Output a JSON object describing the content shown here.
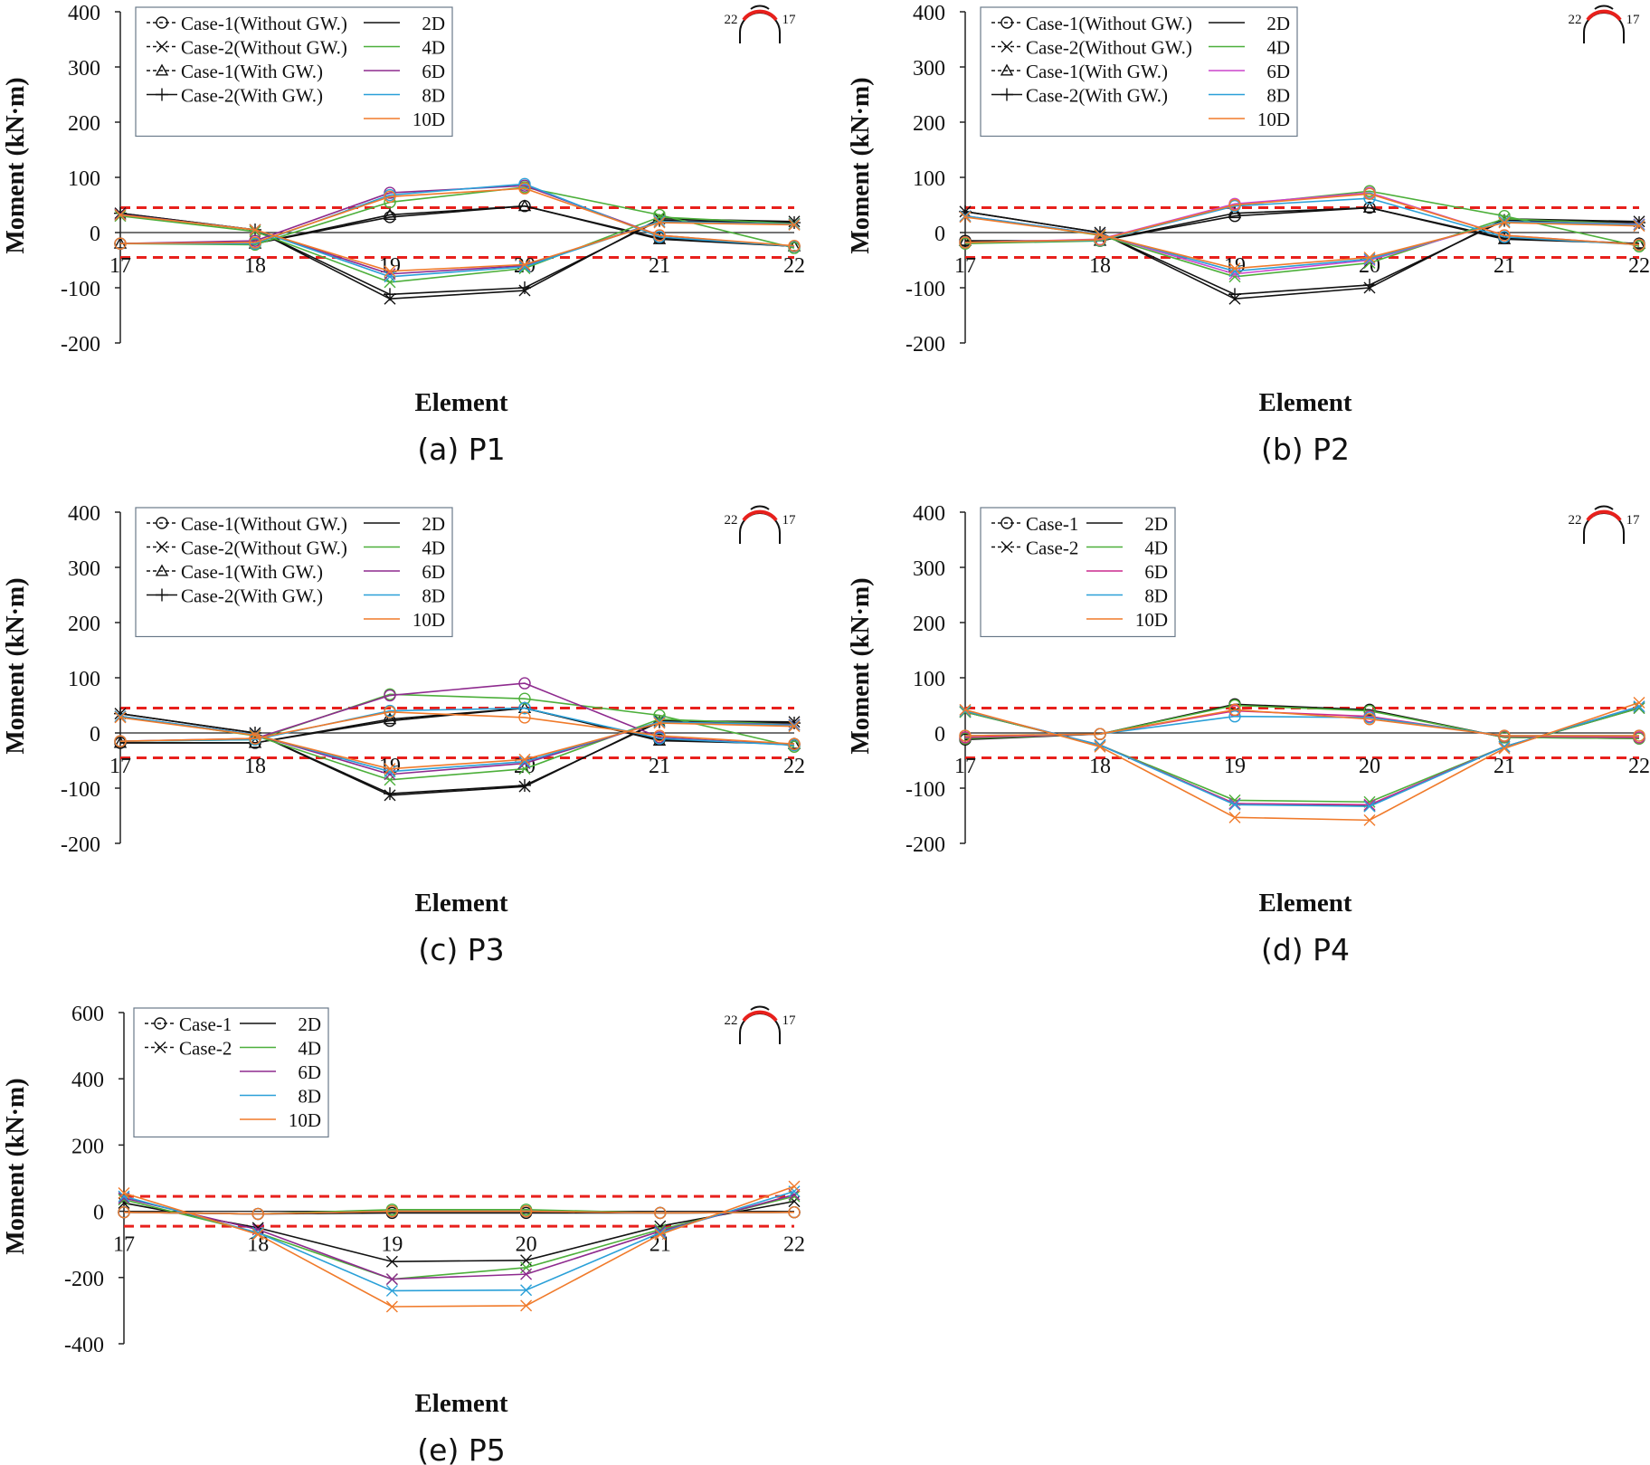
{
  "chart_data": [
    {
      "type": "line",
      "panel": "(a) P1",
      "caption": "(a) P1",
      "xlabel": "Element",
      "ylabel": "Moment (kN·m)",
      "categories": [
        "17",
        "18",
        "19",
        "20",
        "21",
        "22"
      ],
      "ylim": [
        -200,
        400
      ],
      "yticks": [
        "400",
        "300",
        "200",
        "100",
        "0",
        "-100",
        "-200"
      ],
      "reference_lines": [
        45,
        -45
      ],
      "legend_markers": [
        "Case-1(Without GW.)",
        "Case-2(Without GW.)",
        "Case-1(With GW.)",
        "Case-2(With GW.)"
      ],
      "legend_colors": [
        "2D",
        "4D",
        "6D",
        "8D",
        "10D"
      ],
      "tunnel_labels": [
        "22",
        "17"
      ],
      "series": [
        {
          "name": "Case-1(Without GW.) 2D",
          "color": "#111111",
          "marker": "circle",
          "values": [
            -20,
            -20,
            28,
            48,
            -10,
            -25
          ]
        },
        {
          "name": "Case-2(Without GW.) 2D",
          "color": "#111111",
          "marker": "x",
          "values": [
            35,
            5,
            -120,
            -105,
            25,
            20
          ]
        },
        {
          "name": "Case-1(With GW.) 2D",
          "color": "#111111",
          "marker": "triangle",
          "values": [
            -20,
            -20,
            32,
            48,
            -12,
            -25
          ]
        },
        {
          "name": "Case-2(With GW.) 2D",
          "color": "#111111",
          "marker": "plus",
          "values": [
            35,
            5,
            -112,
            -100,
            22,
            18
          ]
        },
        {
          "name": "Case-1 4D",
          "color": "#4caf3a",
          "marker": "circle",
          "values": [
            -20,
            -22,
            55,
            82,
            32,
            -28
          ]
        },
        {
          "name": "Case-2 4D",
          "color": "#4caf3a",
          "marker": "x",
          "values": [
            30,
            2,
            -90,
            -65,
            28,
            16
          ]
        },
        {
          "name": "Case-1 6D",
          "color": "#8e2a8e",
          "marker": "circle",
          "values": [
            -20,
            -15,
            72,
            85,
            -5,
            -25
          ]
        },
        {
          "name": "Case-2 6D",
          "color": "#8e2a8e",
          "marker": "x",
          "values": [
            33,
            5,
            -75,
            -60,
            20,
            15
          ]
        },
        {
          "name": "Case-1 8D",
          "color": "#2aa0d8",
          "marker": "circle",
          "values": [
            -20,
            -20,
            68,
            88,
            -8,
            -25
          ]
        },
        {
          "name": "Case-2 8D",
          "color": "#2aa0d8",
          "marker": "x",
          "values": [
            32,
            5,
            -80,
            -62,
            20,
            15
          ]
        },
        {
          "name": "Case-1 10D",
          "color": "#f07a2a",
          "marker": "circle",
          "values": [
            -20,
            -18,
            65,
            80,
            -5,
            -24
          ]
        },
        {
          "name": "Case-2 10D",
          "color": "#f07a2a",
          "marker": "x",
          "values": [
            32,
            5,
            -70,
            -58,
            18,
            14
          ]
        }
      ]
    },
    {
      "type": "line",
      "panel": "(b) P2",
      "caption": "(b) P2",
      "xlabel": "Element",
      "ylabel": "Moment (kN·m)",
      "categories": [
        "17",
        "18",
        "19",
        "20",
        "21",
        "22"
      ],
      "ylim": [
        -200,
        400
      ],
      "yticks": [
        "400",
        "300",
        "200",
        "100",
        "0",
        "-100",
        "-200"
      ],
      "reference_lines": [
        45,
        -45
      ],
      "legend_markers": [
        "Case-1(Without GW.)",
        "Case-2(Without GW.)",
        "Case-1(With GW.)",
        "Case-2(With GW.)"
      ],
      "legend_colors": [
        "2D",
        "4D",
        "6D",
        "8D",
        "10D"
      ],
      "tunnel_labels": [
        "22",
        "17"
      ],
      "series": [
        {
          "name": "Case-1(Without GW.) 2D",
          "color": "#111111",
          "marker": "circle",
          "values": [
            -15,
            -15,
            30,
            45,
            -10,
            -20
          ]
        },
        {
          "name": "Case-2(Without GW.) 2D",
          "color": "#111111",
          "marker": "x",
          "values": [
            38,
            0,
            -120,
            -100,
            25,
            20
          ]
        },
        {
          "name": "Case-1(With GW.) 2D",
          "color": "#111111",
          "marker": "triangle",
          "values": [
            -15,
            -15,
            35,
            45,
            -12,
            -20
          ]
        },
        {
          "name": "Case-2(With GW.) 2D",
          "color": "#111111",
          "marker": "plus",
          "values": [
            38,
            0,
            -112,
            -95,
            22,
            18
          ]
        },
        {
          "name": "Case-1 4D",
          "color": "#4caf3a",
          "marker": "circle",
          "values": [
            -20,
            -15,
            50,
            75,
            30,
            -25
          ]
        },
        {
          "name": "Case-2 4D",
          "color": "#4caf3a",
          "marker": "x",
          "values": [
            30,
            -5,
            -80,
            -55,
            25,
            15
          ]
        },
        {
          "name": "Case-1 6D",
          "color": "#cc44cc",
          "marker": "circle",
          "values": [
            -18,
            -12,
            52,
            72,
            -5,
            -22
          ]
        },
        {
          "name": "Case-2 6D",
          "color": "#cc44cc",
          "marker": "x",
          "values": [
            30,
            -3,
            -75,
            -50,
            20,
            15
          ]
        },
        {
          "name": "Case-1 8D",
          "color": "#2aa0d8",
          "marker": "circle",
          "values": [
            -18,
            -14,
            48,
            62,
            -8,
            -22
          ]
        },
        {
          "name": "Case-2 8D",
          "color": "#2aa0d8",
          "marker": "x",
          "values": [
            30,
            -3,
            -70,
            -48,
            20,
            14
          ]
        },
        {
          "name": "Case-1 10D",
          "color": "#f07a2a",
          "marker": "circle",
          "values": [
            -18,
            -13,
            50,
            70,
            -5,
            -22
          ]
        },
        {
          "name": "Case-2 10D",
          "color": "#f07a2a",
          "marker": "x",
          "values": [
            28,
            -4,
            -65,
            -45,
            18,
            12
          ]
        }
      ]
    },
    {
      "type": "line",
      "panel": "(c) P3",
      "caption": "(c) P3",
      "xlabel": "Element",
      "ylabel": "Moment (kN·m)",
      "categories": [
        "17",
        "18",
        "19",
        "20",
        "21",
        "22"
      ],
      "ylim": [
        -200,
        400
      ],
      "yticks": [
        "400",
        "300",
        "200",
        "100",
        "0",
        "-100",
        "-200"
      ],
      "reference_lines": [
        45,
        -45
      ],
      "legend_markers": [
        "Case-1(Without GW.)",
        "Case-2(Without GW.)",
        "Case-1(With GW.)",
        "Case-2(With GW.)"
      ],
      "legend_colors": [
        "2D",
        "4D",
        "6D",
        "8D",
        "10D"
      ],
      "tunnel_labels": [
        "22",
        "17"
      ],
      "series": [
        {
          "name": "Case-1(Without GW.) 2D",
          "color": "#111111",
          "marker": "circle",
          "values": [
            -18,
            -18,
            22,
            45,
            -12,
            -20
          ]
        },
        {
          "name": "Case-2(Without GW.) 2D",
          "color": "#111111",
          "marker": "x",
          "values": [
            35,
            0,
            -113,
            -97,
            22,
            20
          ]
        },
        {
          "name": "Case-1(With GW.) 2D",
          "color": "#111111",
          "marker": "triangle",
          "values": [
            -18,
            -18,
            25,
            45,
            -14,
            -20
          ]
        },
        {
          "name": "Case-2(With GW.) 2D",
          "color": "#111111",
          "marker": "plus",
          "values": [
            35,
            0,
            -110,
            -95,
            20,
            18
          ]
        },
        {
          "name": "Case-1 4D",
          "color": "#4caf3a",
          "marker": "circle",
          "values": [
            -15,
            -12,
            70,
            62,
            32,
            -25
          ]
        },
        {
          "name": "Case-2 4D",
          "color": "#4caf3a",
          "marker": "x",
          "values": [
            30,
            -5,
            -85,
            -65,
            25,
            15
          ]
        },
        {
          "name": "Case-1 6D",
          "color": "#8e2a8e",
          "marker": "circle",
          "values": [
            -15,
            -10,
            68,
            90,
            -8,
            -22
          ]
        },
        {
          "name": "Case-2 6D",
          "color": "#8e2a8e",
          "marker": "x",
          "values": [
            30,
            -3,
            -75,
            -55,
            20,
            15
          ]
        },
        {
          "name": "Case-1 8D",
          "color": "#2aa0d8",
          "marker": "circle",
          "values": [
            -15,
            -12,
            40,
            45,
            -10,
            -22
          ]
        },
        {
          "name": "Case-2 8D",
          "color": "#2aa0d8",
          "marker": "x",
          "values": [
            30,
            -3,
            -70,
            -52,
            20,
            14
          ]
        },
        {
          "name": "Case-1 10D",
          "color": "#f07a2a",
          "marker": "circle",
          "values": [
            -15,
            -10,
            38,
            28,
            -5,
            -20
          ]
        },
        {
          "name": "Case-2 10D",
          "color": "#f07a2a",
          "marker": "x",
          "values": [
            28,
            -4,
            -65,
            -48,
            18,
            12
          ]
        }
      ]
    },
    {
      "type": "line",
      "panel": "(d) P4",
      "caption": "(d) P4",
      "xlabel": "Element",
      "ylabel": "Moment (kN·m)",
      "categories": [
        "17",
        "18",
        "19",
        "20",
        "21",
        "22"
      ],
      "ylim": [
        -200,
        400
      ],
      "yticks": [
        "400",
        "300",
        "200",
        "100",
        "0",
        "-100",
        "-200"
      ],
      "reference_lines": [
        45,
        -45
      ],
      "legend_markers": [
        "Case-1",
        "Case-2"
      ],
      "legend_colors": [
        "2D",
        "4D",
        "6D",
        "8D",
        "10D"
      ],
      "tunnel_labels": [
        "22",
        "17"
      ],
      "series": [
        {
          "name": "Case-1 2D",
          "color": "#111111",
          "marker": "circle",
          "values": [
            -12,
            -2,
            52,
            42,
            -8,
            -10
          ]
        },
        {
          "name": "Case-2 2D",
          "color": "#111111",
          "marker": "x",
          "values": [
            38,
            -22,
            -128,
            -132,
            -25,
            45
          ]
        },
        {
          "name": "Case-1 4D",
          "color": "#4caf3a",
          "marker": "circle",
          "values": [
            -10,
            -2,
            50,
            40,
            -8,
            -10
          ]
        },
        {
          "name": "Case-2 4D",
          "color": "#4caf3a",
          "marker": "x",
          "values": [
            38,
            -22,
            -122,
            -125,
            -25,
            45
          ]
        },
        {
          "name": "Case-1 6D",
          "color": "#cc2a8e",
          "marker": "circle",
          "values": [
            -8,
            -2,
            40,
            30,
            -6,
            -8
          ]
        },
        {
          "name": "Case-2 6D",
          "color": "#cc2a8e",
          "marker": "x",
          "values": [
            40,
            -22,
            -128,
            -130,
            -25,
            48
          ]
        },
        {
          "name": "Case-1 8D",
          "color": "#2aa0d8",
          "marker": "circle",
          "values": [
            -5,
            -2,
            30,
            28,
            -5,
            -5
          ]
        },
        {
          "name": "Case-2 8D",
          "color": "#2aa0d8",
          "marker": "x",
          "values": [
            40,
            -22,
            -130,
            -133,
            -25,
            48
          ]
        },
        {
          "name": "Case-1 10D",
          "color": "#f07a2a",
          "marker": "circle",
          "values": [
            -5,
            -2,
            42,
            25,
            -5,
            -5
          ]
        },
        {
          "name": "Case-2 10D",
          "color": "#f07a2a",
          "marker": "x",
          "values": [
            42,
            -25,
            -153,
            -158,
            -28,
            55
          ]
        }
      ]
    },
    {
      "type": "line",
      "panel": "(e) P5",
      "caption": "(e) P5",
      "xlabel": "Element",
      "ylabel": "Moment (kN·m)",
      "categories": [
        "17",
        "18",
        "19",
        "20",
        "21",
        "22"
      ],
      "ylim": [
        -400,
        600
      ],
      "yticks": [
        "600",
        "400",
        "200",
        "0",
        "-200",
        "-400"
      ],
      "reference_lines": [
        45,
        -45
      ],
      "legend_markers": [
        "Case-1",
        "Case-2"
      ],
      "legend_colors": [
        "2D",
        "4D",
        "6D",
        "8D",
        "10D"
      ],
      "tunnel_labels": [
        "22",
        "17"
      ],
      "series": [
        {
          "name": "Case-1 2D",
          "color": "#111111",
          "marker": "circle",
          "values": [
            -3,
            -8,
            -5,
            -5,
            -5,
            -3
          ]
        },
        {
          "name": "Case-2 2D",
          "color": "#111111",
          "marker": "x",
          "values": [
            25,
            -50,
            -152,
            -148,
            -45,
            30
          ]
        },
        {
          "name": "Case-1 4D",
          "color": "#4caf3a",
          "marker": "circle",
          "values": [
            -3,
            -8,
            5,
            5,
            -5,
            -3
          ]
        },
        {
          "name": "Case-2 4D",
          "color": "#4caf3a",
          "marker": "x",
          "values": [
            35,
            -65,
            -205,
            -170,
            -55,
            45
          ]
        },
        {
          "name": "Case-1 6D",
          "color": "#8e2a8e",
          "marker": "circle",
          "values": [
            -3,
            -8,
            0,
            0,
            -5,
            -3
          ]
        },
        {
          "name": "Case-2 6D",
          "color": "#8e2a8e",
          "marker": "x",
          "values": [
            40,
            -55,
            -205,
            -190,
            -60,
            50
          ]
        },
        {
          "name": "Case-1 8D",
          "color": "#2aa0d8",
          "marker": "circle",
          "values": [
            -3,
            -8,
            0,
            0,
            -5,
            -3
          ]
        },
        {
          "name": "Case-2 8D",
          "color": "#2aa0d8",
          "marker": "x",
          "values": [
            45,
            -65,
            -240,
            -238,
            -65,
            60
          ]
        },
        {
          "name": "Case-1 10D",
          "color": "#f07a2a",
          "marker": "circle",
          "values": [
            -3,
            -8,
            0,
            0,
            -5,
            -3
          ]
        },
        {
          "name": "Case-2 10D",
          "color": "#f07a2a",
          "marker": "x",
          "values": [
            55,
            -70,
            -288,
            -285,
            -70,
            75
          ]
        }
      ]
    }
  ]
}
